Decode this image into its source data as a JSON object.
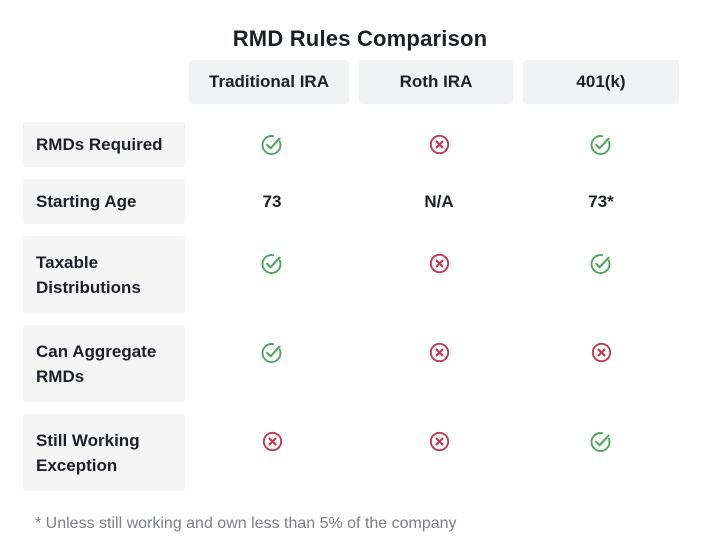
{
  "chart_data": {
    "type": "table",
    "title": "RMD Rules Comparison",
    "columns": [
      "Traditional IRA",
      "Roth IRA",
      "401(k)"
    ],
    "rows": [
      "RMDs Required",
      "Starting Age",
      "Taxable Distributions",
      "Can Aggregate RMDs",
      "Still Working Exception"
    ],
    "cells": [
      [
        "check",
        "cross",
        "check"
      ],
      [
        "73",
        "N/A",
        "73*"
      ],
      [
        "check",
        "cross",
        "check"
      ],
      [
        "check",
        "cross",
        "cross"
      ],
      [
        "cross",
        "cross",
        "check"
      ]
    ],
    "footnote": "* Unless still working and own less than 5% of the company",
    "icon_legend": {
      "check": "yes",
      "cross": "no"
    },
    "colors": {
      "check_green": "#4ea75c",
      "cross_red": "#c13b4f",
      "header_bg": "#f1f2f3",
      "label_bg": "#f5f5f6",
      "text": "#1c1f27",
      "footnote_text": "#7b7e86"
    }
  }
}
